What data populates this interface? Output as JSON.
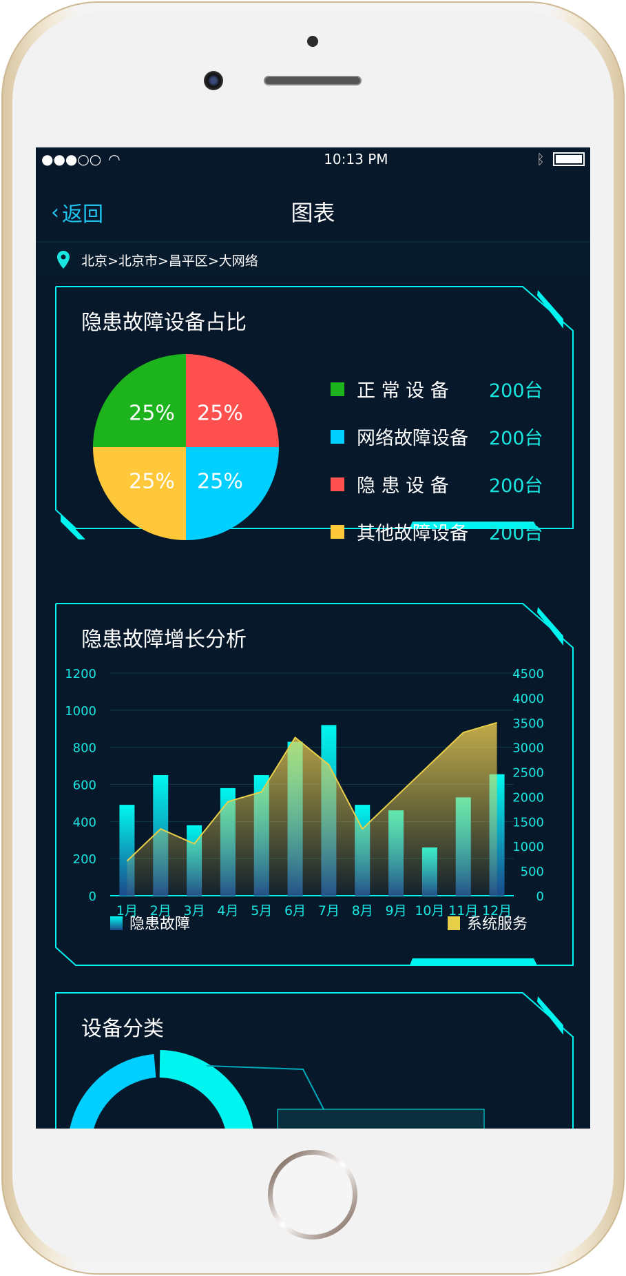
{
  "status_bar": {
    "signal": "●●●○○",
    "time": "10:13 PM"
  },
  "nav": {
    "back_label": "返回",
    "title": "图表"
  },
  "breadcrumb": {
    "path": "北京>北京市>昌平区>大网络"
  },
  "pie_panel": {
    "title": "隐患故障设备占比"
  },
  "chart_data": [
    {
      "type": "pie",
      "values": [
        25,
        25,
        25,
        25
      ],
      "slice_labels": [
        "25%",
        "25%",
        "25%",
        "25%"
      ],
      "legend": [
        {
          "label": "正 常 设 备",
          "value": "200台",
          "color": "#1db31d"
        },
        {
          "label": "网络故障设备",
          "value": "200台",
          "color": "#00cfff"
        },
        {
          "label": "隐 患 设 备",
          "value": "200台",
          "color": "#ff5050"
        },
        {
          "label": "其他故障设备",
          "value": "200台",
          "color": "#ffc73a"
        }
      ]
    },
    {
      "type": "bar+area",
      "title": "隐患故障增长分析",
      "categories": [
        "1月",
        "2月",
        "3月",
        "4月",
        "5月",
        "6月",
        "7月",
        "8月",
        "9月",
        "10月",
        "11月",
        "12月"
      ],
      "y_left": {
        "ticks": [
          "0",
          "200",
          "400",
          "600",
          "800",
          "1000",
          "1200"
        ],
        "lim": [
          0,
          1200
        ]
      },
      "y_right": {
        "ticks": [
          "0",
          "500",
          "1000",
          "1500",
          "2000",
          "2500",
          "3000",
          "3500",
          "4000",
          "4500"
        ],
        "lim": [
          0,
          4500
        ]
      },
      "series": [
        {
          "name": "隐患故障",
          "type": "bar",
          "axis": "left",
          "color": "#00f5f0",
          "values": [
            490,
            650,
            380,
            580,
            650,
            830,
            920,
            490,
            460,
            260,
            530,
            655
          ]
        },
        {
          "name": "系统服务",
          "type": "area",
          "axis": "right",
          "color": "#e8cf4a",
          "values": [
            700,
            1350,
            1050,
            1900,
            2100,
            3200,
            2650,
            1350,
            2000,
            2650,
            3300,
            3500
          ]
        }
      ],
      "grid": true,
      "legend": "bottom"
    }
  ],
  "category_panel": {
    "title": "设备分类"
  },
  "colors": {
    "accent": "#00f5f0",
    "background": "#07182a"
  }
}
